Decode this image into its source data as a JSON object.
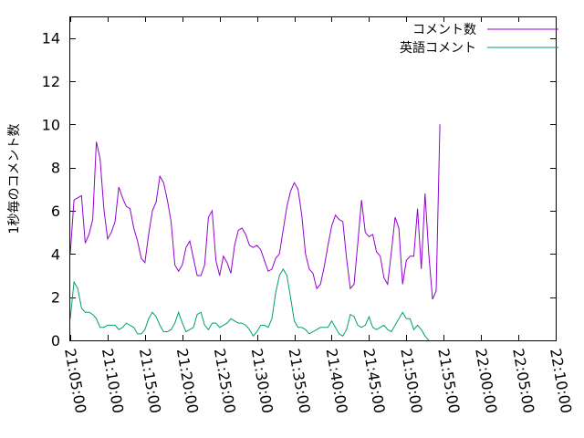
{
  "chart_data": {
    "type": "line",
    "ylabel": "1秒毎のコメント数",
    "xlabel": "",
    "ylim": [
      0,
      15
    ],
    "xlim": [
      "21:05:00",
      "22:10:00"
    ],
    "yticks": [
      0,
      2,
      4,
      6,
      8,
      10,
      12,
      14
    ],
    "xticks": [
      "21:05:00",
      "21:10:00",
      "21:15:00",
      "21:20:00",
      "21:25:00",
      "21:30:00",
      "21:35:00",
      "21:40:00",
      "21:45:00",
      "21:50:00",
      "21:55:00",
      "22:00:00",
      "22:05:00",
      "22:10:00"
    ],
    "legend_position": "top-right",
    "grid": false,
    "series": [
      {
        "name": "コメント数",
        "color": "#9400d3",
        "points": [
          [
            "21:05:00",
            4.0
          ],
          [
            "21:05:30",
            6.5
          ],
          [
            "21:06:00",
            6.6
          ],
          [
            "21:06:30",
            6.7
          ],
          [
            "21:07:00",
            4.5
          ],
          [
            "21:07:30",
            4.9
          ],
          [
            "21:08:00",
            5.6
          ],
          [
            "21:08:30",
            9.2
          ],
          [
            "21:09:00",
            8.4
          ],
          [
            "21:09:30",
            6.1
          ],
          [
            "21:10:00",
            4.7
          ],
          [
            "21:10:30",
            5.0
          ],
          [
            "21:11:00",
            5.5
          ],
          [
            "21:11:30",
            7.1
          ],
          [
            "21:12:00",
            6.6
          ],
          [
            "21:12:30",
            6.2
          ],
          [
            "21:13:00",
            6.1
          ],
          [
            "21:13:30",
            5.2
          ],
          [
            "21:14:00",
            4.6
          ],
          [
            "21:14:30",
            3.8
          ],
          [
            "21:15:00",
            3.6
          ],
          [
            "21:15:30",
            4.9
          ],
          [
            "21:16:00",
            6.0
          ],
          [
            "21:16:30",
            6.4
          ],
          [
            "21:17:00",
            7.6
          ],
          [
            "21:17:30",
            7.3
          ],
          [
            "21:18:00",
            6.5
          ],
          [
            "21:18:30",
            5.5
          ],
          [
            "21:19:00",
            3.5
          ],
          [
            "21:19:30",
            3.2
          ],
          [
            "21:20:00",
            3.5
          ],
          [
            "21:20:30",
            4.3
          ],
          [
            "21:21:00",
            4.6
          ],
          [
            "21:21:30",
            3.8
          ],
          [
            "21:22:00",
            3.0
          ],
          [
            "21:22:30",
            3.0
          ],
          [
            "21:23:00",
            3.5
          ],
          [
            "21:23:30",
            5.7
          ],
          [
            "21:24:00",
            6.0
          ],
          [
            "21:24:30",
            3.7
          ],
          [
            "21:25:00",
            3.0
          ],
          [
            "21:25:30",
            3.9
          ],
          [
            "21:26:00",
            3.6
          ],
          [
            "21:26:30",
            3.1
          ],
          [
            "21:27:00",
            4.4
          ],
          [
            "21:27:30",
            5.1
          ],
          [
            "21:28:00",
            5.2
          ],
          [
            "21:28:30",
            4.9
          ],
          [
            "21:29:00",
            4.4
          ],
          [
            "21:29:30",
            4.3
          ],
          [
            "21:30:00",
            4.4
          ],
          [
            "21:30:30",
            4.2
          ],
          [
            "21:31:00",
            3.7
          ],
          [
            "21:31:30",
            3.2
          ],
          [
            "21:32:00",
            3.3
          ],
          [
            "21:32:30",
            3.8
          ],
          [
            "21:33:00",
            4.0
          ],
          [
            "21:33:30",
            5.1
          ],
          [
            "21:34:00",
            6.2
          ],
          [
            "21:34:30",
            6.9
          ],
          [
            "21:35:00",
            7.3
          ],
          [
            "21:35:30",
            7.0
          ],
          [
            "21:36:00",
            5.8
          ],
          [
            "21:36:30",
            4.0
          ],
          [
            "21:37:00",
            3.3
          ],
          [
            "21:37:30",
            3.1
          ],
          [
            "21:38:00",
            2.4
          ],
          [
            "21:38:30",
            2.6
          ],
          [
            "21:39:00",
            3.4
          ],
          [
            "21:39:30",
            4.4
          ],
          [
            "21:40:00",
            5.3
          ],
          [
            "21:40:30",
            5.8
          ],
          [
            "21:41:00",
            5.6
          ],
          [
            "21:41:30",
            5.5
          ],
          [
            "21:42:00",
            3.8
          ],
          [
            "21:42:30",
            2.4
          ],
          [
            "21:43:00",
            2.6
          ],
          [
            "21:43:30",
            4.5
          ],
          [
            "21:44:00",
            6.5
          ],
          [
            "21:44:30",
            5.0
          ],
          [
            "21:45:00",
            4.8
          ],
          [
            "21:45:30",
            4.9
          ],
          [
            "21:46:00",
            4.1
          ],
          [
            "21:46:30",
            3.9
          ],
          [
            "21:47:00",
            2.9
          ],
          [
            "21:47:30",
            2.6
          ],
          [
            "21:48:00",
            4.1
          ],
          [
            "21:48:30",
            5.7
          ],
          [
            "21:49:00",
            5.2
          ],
          [
            "21:49:30",
            2.6
          ],
          [
            "21:50:00",
            3.7
          ],
          [
            "21:50:30",
            3.9
          ],
          [
            "21:51:00",
            3.9
          ],
          [
            "21:51:30",
            6.1
          ],
          [
            "21:52:00",
            3.3
          ],
          [
            "21:52:30",
            6.8
          ],
          [
            "21:53:00",
            4.0
          ],
          [
            "21:53:30",
            1.9
          ],
          [
            "21:54:00",
            2.3
          ],
          [
            "21:54:30",
            10.0
          ]
        ]
      },
      {
        "name": "英語コメント",
        "color": "#009e73",
        "points": [
          [
            "21:05:00",
            1.0
          ],
          [
            "21:05:30",
            2.7
          ],
          [
            "21:06:00",
            2.4
          ],
          [
            "21:06:30",
            1.5
          ],
          [
            "21:07:00",
            1.3
          ],
          [
            "21:07:30",
            1.3
          ],
          [
            "21:08:00",
            1.2
          ],
          [
            "21:08:30",
            1.0
          ],
          [
            "21:09:00",
            0.6
          ],
          [
            "21:09:30",
            0.6
          ],
          [
            "21:10:00",
            0.7
          ],
          [
            "21:10:30",
            0.7
          ],
          [
            "21:11:00",
            0.7
          ],
          [
            "21:11:30",
            0.5
          ],
          [
            "21:12:00",
            0.6
          ],
          [
            "21:12:30",
            0.8
          ],
          [
            "21:13:00",
            0.7
          ],
          [
            "21:13:30",
            0.6
          ],
          [
            "21:14:00",
            0.3
          ],
          [
            "21:14:30",
            0.3
          ],
          [
            "21:15:00",
            0.5
          ],
          [
            "21:15:30",
            1.0
          ],
          [
            "21:16:00",
            1.3
          ],
          [
            "21:16:30",
            1.1
          ],
          [
            "21:17:00",
            0.7
          ],
          [
            "21:17:30",
            0.4
          ],
          [
            "21:18:00",
            0.4
          ],
          [
            "21:18:30",
            0.5
          ],
          [
            "21:19:00",
            0.8
          ],
          [
            "21:19:30",
            1.3
          ],
          [
            "21:20:00",
            0.8
          ],
          [
            "21:20:30",
            0.4
          ],
          [
            "21:21:00",
            0.5
          ],
          [
            "21:21:30",
            0.6
          ],
          [
            "21:22:00",
            1.2
          ],
          [
            "21:22:30",
            1.3
          ],
          [
            "21:23:00",
            0.7
          ],
          [
            "21:23:30",
            0.5
          ],
          [
            "21:24:00",
            0.8
          ],
          [
            "21:24:30",
            0.8
          ],
          [
            "21:25:00",
            0.6
          ],
          [
            "21:25:30",
            0.7
          ],
          [
            "21:26:00",
            0.8
          ],
          [
            "21:26:30",
            1.0
          ],
          [
            "21:27:00",
            0.9
          ],
          [
            "21:27:30",
            0.8
          ],
          [
            "21:28:00",
            0.8
          ],
          [
            "21:28:30",
            0.7
          ],
          [
            "21:29:00",
            0.5
          ],
          [
            "21:29:30",
            0.2
          ],
          [
            "21:30:00",
            0.4
          ],
          [
            "21:30:30",
            0.7
          ],
          [
            "21:31:00",
            0.7
          ],
          [
            "21:31:30",
            0.6
          ],
          [
            "21:32:00",
            1.0
          ],
          [
            "21:32:30",
            2.2
          ],
          [
            "21:33:00",
            3.0
          ],
          [
            "21:33:30",
            3.3
          ],
          [
            "21:34:00",
            3.0
          ],
          [
            "21:34:30",
            2.0
          ],
          [
            "21:35:00",
            0.9
          ],
          [
            "21:35:30",
            0.6
          ],
          [
            "21:36:00",
            0.6
          ],
          [
            "21:36:30",
            0.5
          ],
          [
            "21:37:00",
            0.3
          ],
          [
            "21:37:30",
            0.4
          ],
          [
            "21:38:00",
            0.5
          ],
          [
            "21:38:30",
            0.6
          ],
          [
            "21:39:00",
            0.6
          ],
          [
            "21:39:30",
            0.6
          ],
          [
            "21:40:00",
            0.9
          ],
          [
            "21:40:30",
            0.6
          ],
          [
            "21:41:00",
            0.3
          ],
          [
            "21:41:30",
            0.2
          ],
          [
            "21:42:00",
            0.5
          ],
          [
            "21:42:30",
            1.2
          ],
          [
            "21:43:00",
            1.1
          ],
          [
            "21:43:30",
            0.7
          ],
          [
            "21:44:00",
            0.6
          ],
          [
            "21:44:30",
            0.7
          ],
          [
            "21:45:00",
            1.1
          ],
          [
            "21:45:30",
            0.6
          ],
          [
            "21:46:00",
            0.5
          ],
          [
            "21:46:30",
            0.6
          ],
          [
            "21:47:00",
            0.7
          ],
          [
            "21:47:30",
            0.5
          ],
          [
            "21:48:00",
            0.4
          ],
          [
            "21:48:30",
            0.7
          ],
          [
            "21:49:00",
            1.0
          ],
          [
            "21:49:30",
            1.3
          ],
          [
            "21:50:00",
            1.0
          ],
          [
            "21:50:30",
            1.0
          ],
          [
            "21:51:00",
            0.5
          ],
          [
            "21:51:30",
            0.7
          ],
          [
            "21:52:00",
            0.5
          ],
          [
            "21:52:30",
            0.2
          ],
          [
            "21:53:00",
            0.0
          ]
        ]
      }
    ]
  }
}
